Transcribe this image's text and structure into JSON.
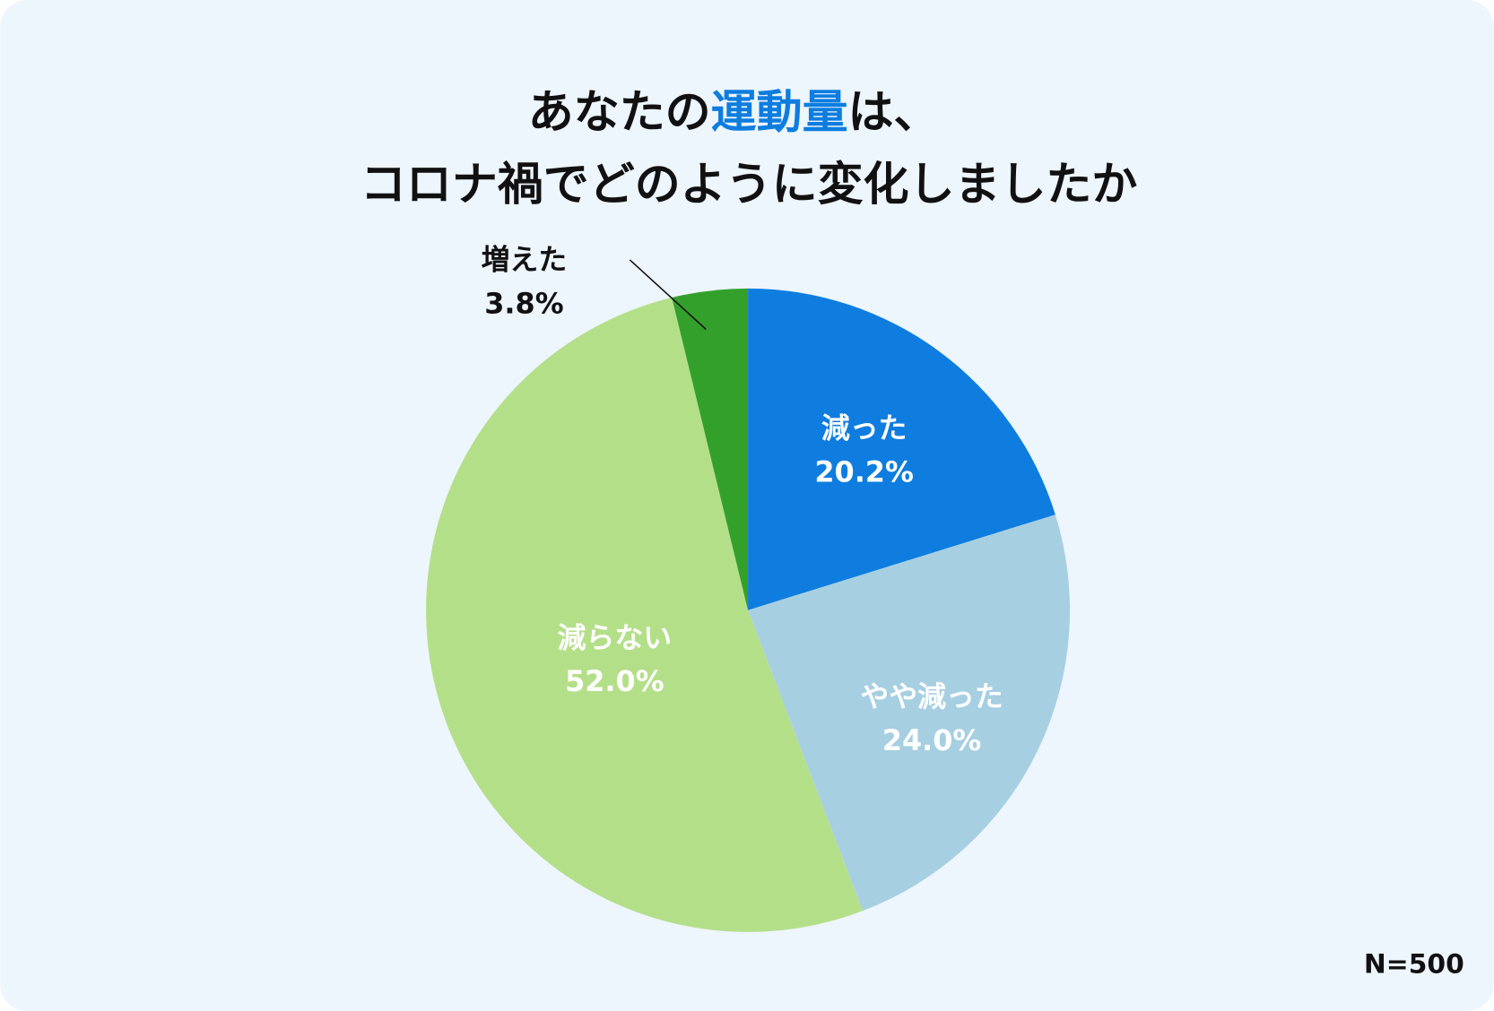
{
  "chart_data": {
    "type": "pie",
    "title_parts": [
      "あなたの",
      "運動量",
      "は、"
    ],
    "title_line2": "コロナ禍でどのように変化しましたか",
    "note": "N=500",
    "start": "top, clockwise",
    "slices": [
      {
        "label": "減った",
        "value": 20.2,
        "value_label": "20.2%",
        "color": "#0e7ddf",
        "text_color": "#ffffff"
      },
      {
        "label": "やや減った",
        "value": 24.0,
        "value_label": "24.0%",
        "color": "#a7cfe2",
        "text_color": "#ffffff"
      },
      {
        "label": "減らない",
        "value": 52.0,
        "value_label": "52.0%",
        "color": "#b4df89",
        "text_color": "#ffffff"
      },
      {
        "label": "増えた",
        "value": 3.8,
        "value_label": "3.8%",
        "color": "#34a02c",
        "text_color": "#111111"
      }
    ]
  },
  "colors": {
    "background": "#edf5fd",
    "accent": "#0e7ddf",
    "text": "#111111"
  }
}
